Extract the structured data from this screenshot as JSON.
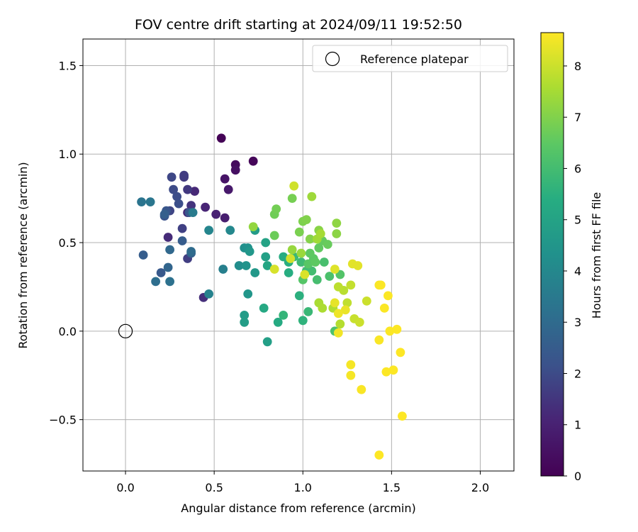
{
  "chart_data": {
    "type": "scatter",
    "title": "FOV centre drift starting at 2024/09/11 19:52:50",
    "xlabel": "Angular distance from reference (arcmin)",
    "ylabel": "Rotation from reference (arcmin)",
    "xlim": [
      -0.24,
      2.19
    ],
    "ylim": [
      -0.79,
      1.65
    ],
    "xticks": [
      0.0,
      0.5,
      1.0,
      1.5,
      2.0
    ],
    "xtick_labels": [
      "0.0",
      "0.5",
      "1.0",
      "1.5",
      "2.0"
    ],
    "yticks": [
      -0.5,
      0.0,
      0.5,
      1.0,
      1.5
    ],
    "ytick_labels": [
      "−0.5",
      "0.0",
      "0.5",
      "1.0",
      "1.5"
    ],
    "grid": true,
    "legend": {
      "placement": "top-right",
      "entries": [
        {
          "label": "Reference platepar",
          "marker": "open-circle",
          "color": "#000000"
        }
      ]
    },
    "reference_point": {
      "x": 0.0,
      "y": 0.0
    },
    "colorbar": {
      "label": "Hours from first FF file",
      "colormap": "viridis",
      "range": [
        0,
        8.65
      ],
      "ticks": [
        0,
        1,
        2,
        3,
        4,
        5,
        6,
        7,
        8
      ],
      "tick_labels": [
        "0",
        "1",
        "2",
        "3",
        "4",
        "5",
        "6",
        "7",
        "8"
      ]
    },
    "points": [
      {
        "x": 0.54,
        "y": 1.09,
        "c": 0.05
      },
      {
        "x": 0.72,
        "y": 0.96,
        "c": 0.15
      },
      {
        "x": 0.62,
        "y": 0.94,
        "c": 0.3
      },
      {
        "x": 0.62,
        "y": 0.91,
        "c": 0.45
      },
      {
        "x": 0.56,
        "y": 0.86,
        "c": 0.6
      },
      {
        "x": 0.58,
        "y": 0.8,
        "c": 0.75
      },
      {
        "x": 0.56,
        "y": 0.64,
        "c": 0.9
      },
      {
        "x": 0.51,
        "y": 0.66,
        "c": 1.0
      },
      {
        "x": 0.45,
        "y": 0.7,
        "c": 1.1
      },
      {
        "x": 0.39,
        "y": 0.79,
        "c": 1.2
      },
      {
        "x": 0.24,
        "y": 0.53,
        "c": 1.25
      },
      {
        "x": 0.35,
        "y": 0.67,
        "c": 1.3
      },
      {
        "x": 0.44,
        "y": 0.19,
        "c": 1.35
      },
      {
        "x": 0.37,
        "y": 0.71,
        "c": 1.45
      },
      {
        "x": 0.35,
        "y": 0.8,
        "c": 1.55
      },
      {
        "x": 0.33,
        "y": 0.87,
        "c": 1.6
      },
      {
        "x": 0.33,
        "y": 0.88,
        "c": 1.65
      },
      {
        "x": 0.35,
        "y": 0.41,
        "c": 1.7
      },
      {
        "x": 0.32,
        "y": 0.58,
        "c": 1.75
      },
      {
        "x": 0.25,
        "y": 0.68,
        "c": 1.85
      },
      {
        "x": 0.26,
        "y": 0.87,
        "c": 1.9
      },
      {
        "x": 0.27,
        "y": 0.8,
        "c": 2.0
      },
      {
        "x": 0.29,
        "y": 0.76,
        "c": 2.05
      },
      {
        "x": 0.3,
        "y": 0.72,
        "c": 2.1
      },
      {
        "x": 0.22,
        "y": 0.65,
        "c": 2.2
      },
      {
        "x": 0.23,
        "y": 0.68,
        "c": 2.3
      },
      {
        "x": 0.36,
        "y": 0.67,
        "c": 2.35
      },
      {
        "x": 0.2,
        "y": 0.33,
        "c": 2.4
      },
      {
        "x": 0.32,
        "y": 0.51,
        "c": 2.5
      },
      {
        "x": 0.1,
        "y": 0.43,
        "c": 2.55
      },
      {
        "x": 0.22,
        "y": 0.66,
        "c": 2.6
      },
      {
        "x": 0.37,
        "y": 0.44,
        "c": 2.7
      },
      {
        "x": 0.24,
        "y": 0.36,
        "c": 2.8
      },
      {
        "x": 0.25,
        "y": 0.46,
        "c": 2.9
      },
      {
        "x": 0.37,
        "y": 0.45,
        "c": 3.0
      },
      {
        "x": 0.17,
        "y": 0.28,
        "c": 3.1
      },
      {
        "x": 0.25,
        "y": 0.28,
        "c": 3.2
      },
      {
        "x": 0.09,
        "y": 0.73,
        "c": 3.3
      },
      {
        "x": 0.14,
        "y": 0.73,
        "c": 3.4
      },
      {
        "x": 0.38,
        "y": 0.67,
        "c": 3.55
      },
      {
        "x": 0.55,
        "y": 0.35,
        "c": 3.7
      },
      {
        "x": 0.47,
        "y": 0.21,
        "c": 3.8
      },
      {
        "x": 0.47,
        "y": 0.57,
        "c": 3.9
      },
      {
        "x": 0.59,
        "y": 0.57,
        "c": 4.0
      },
      {
        "x": 0.64,
        "y": 0.37,
        "c": 4.2
      },
      {
        "x": 0.67,
        "y": 0.47,
        "c": 4.3
      },
      {
        "x": 0.69,
        "y": 0.47,
        "c": 4.35
      },
      {
        "x": 0.68,
        "y": 0.37,
        "c": 4.4
      },
      {
        "x": 0.69,
        "y": 0.21,
        "c": 4.5
      },
      {
        "x": 0.7,
        "y": 0.45,
        "c": 4.55
      },
      {
        "x": 0.73,
        "y": 0.33,
        "c": 4.6
      },
      {
        "x": 0.73,
        "y": 0.57,
        "c": 4.7
      },
      {
        "x": 0.67,
        "y": 0.09,
        "c": 4.75
      },
      {
        "x": 0.67,
        "y": 0.05,
        "c": 4.8
      },
      {
        "x": 0.8,
        "y": -0.06,
        "c": 4.85
      },
      {
        "x": 0.79,
        "y": 0.42,
        "c": 4.9
      },
      {
        "x": 0.79,
        "y": 0.5,
        "c": 5.0
      },
      {
        "x": 0.8,
        "y": 0.37,
        "c": 5.1
      },
      {
        "x": 0.78,
        "y": 0.13,
        "c": 5.2
      },
      {
        "x": 0.86,
        "y": 0.05,
        "c": 5.3
      },
      {
        "x": 0.89,
        "y": 0.42,
        "c": 5.35
      },
      {
        "x": 0.92,
        "y": 0.33,
        "c": 5.4
      },
      {
        "x": 0.92,
        "y": 0.39,
        "c": 5.45
      },
      {
        "x": 0.98,
        "y": 0.2,
        "c": 5.5
      },
      {
        "x": 1.0,
        "y": 0.06,
        "c": 5.6
      },
      {
        "x": 0.89,
        "y": 0.09,
        "c": 5.7
      },
      {
        "x": 1.03,
        "y": 0.11,
        "c": 5.8
      },
      {
        "x": 0.95,
        "y": 0.42,
        "c": 5.85
      },
      {
        "x": 0.99,
        "y": 0.39,
        "c": 5.9
      },
      {
        "x": 1.02,
        "y": 0.34,
        "c": 5.95
      },
      {
        "x": 1.05,
        "y": 0.34,
        "c": 6.0
      },
      {
        "x": 1.08,
        "y": 0.29,
        "c": 6.05
      },
      {
        "x": 1.12,
        "y": 0.39,
        "c": 6.1
      },
      {
        "x": 1.15,
        "y": 0.31,
        "c": 6.15
      },
      {
        "x": 1.18,
        "y": 0.0,
        "c": 6.2
      },
      {
        "x": 1.21,
        "y": 0.32,
        "c": 6.3
      },
      {
        "x": 1.0,
        "y": 0.29,
        "c": 6.35
      },
      {
        "x": 1.03,
        "y": 0.38,
        "c": 6.4
      },
      {
        "x": 1.06,
        "y": 0.41,
        "c": 6.45
      },
      {
        "x": 1.07,
        "y": 0.39,
        "c": 6.5
      },
      {
        "x": 1.04,
        "y": 0.44,
        "c": 6.5
      },
      {
        "x": 1.09,
        "y": 0.47,
        "c": 6.55
      },
      {
        "x": 1.11,
        "y": 0.51,
        "c": 6.6
      },
      {
        "x": 1.14,
        "y": 0.49,
        "c": 6.65
      },
      {
        "x": 0.84,
        "y": 0.54,
        "c": 6.7
      },
      {
        "x": 0.84,
        "y": 0.66,
        "c": 6.75
      },
      {
        "x": 0.85,
        "y": 0.69,
        "c": 6.8
      },
      {
        "x": 0.94,
        "y": 0.75,
        "c": 6.85
      },
      {
        "x": 0.98,
        "y": 0.56,
        "c": 6.9
      },
      {
        "x": 1.0,
        "y": 0.62,
        "c": 6.95
      },
      {
        "x": 1.02,
        "y": 0.63,
        "c": 7.0
      },
      {
        "x": 1.04,
        "y": 0.52,
        "c": 7.05
      },
      {
        "x": 1.09,
        "y": 0.57,
        "c": 7.1
      },
      {
        "x": 1.19,
        "y": 0.55,
        "c": 7.15
      },
      {
        "x": 1.19,
        "y": 0.61,
        "c": 7.2
      },
      {
        "x": 0.72,
        "y": 0.59,
        "c": 7.25
      },
      {
        "x": 0.94,
        "y": 0.46,
        "c": 7.3
      },
      {
        "x": 0.99,
        "y": 0.44,
        "c": 7.35
      },
      {
        "x": 1.05,
        "y": 0.76,
        "c": 7.4
      },
      {
        "x": 1.08,
        "y": 0.52,
        "c": 7.45
      },
      {
        "x": 1.1,
        "y": 0.55,
        "c": 7.5
      },
      {
        "x": 1.09,
        "y": 0.16,
        "c": 7.55
      },
      {
        "x": 1.11,
        "y": 0.13,
        "c": 7.6
      },
      {
        "x": 1.17,
        "y": 0.13,
        "c": 7.65
      },
      {
        "x": 1.21,
        "y": 0.04,
        "c": 7.7
      },
      {
        "x": 1.23,
        "y": 0.23,
        "c": 7.75
      },
      {
        "x": 1.2,
        "y": 0.25,
        "c": 7.8
      },
      {
        "x": 1.25,
        "y": 0.16,
        "c": 7.85
      },
      {
        "x": 1.27,
        "y": 0.26,
        "c": 7.9
      },
      {
        "x": 1.29,
        "y": 0.07,
        "c": 7.95
      },
      {
        "x": 1.32,
        "y": 0.05,
        "c": 8.0
      },
      {
        "x": 1.36,
        "y": 0.17,
        "c": 8.0
      },
      {
        "x": 0.95,
        "y": 0.82,
        "c": 8.05
      },
      {
        "x": 0.93,
        "y": 0.41,
        "c": 8.1
      },
      {
        "x": 0.84,
        "y": 0.35,
        "c": 8.15
      },
      {
        "x": 1.01,
        "y": 0.32,
        "c": 8.2
      },
      {
        "x": 1.18,
        "y": 0.35,
        "c": 8.25
      },
      {
        "x": 1.28,
        "y": 0.38,
        "c": 8.3
      },
      {
        "x": 1.31,
        "y": 0.37,
        "c": 8.3
      },
      {
        "x": 1.18,
        "y": 0.16,
        "c": 8.35
      },
      {
        "x": 1.24,
        "y": 0.12,
        "c": 8.4
      },
      {
        "x": 1.2,
        "y": 0.1,
        "c": 8.45
      },
      {
        "x": 1.2,
        "y": -0.01,
        "c": 8.5
      },
      {
        "x": 1.27,
        "y": -0.19,
        "c": 8.55
      },
      {
        "x": 1.27,
        "y": -0.25,
        "c": 8.55
      },
      {
        "x": 1.33,
        "y": -0.33,
        "c": 8.6
      },
      {
        "x": 1.43,
        "y": -0.05,
        "c": 8.6
      },
      {
        "x": 1.43,
        "y": 0.26,
        "c": 8.6
      },
      {
        "x": 1.44,
        "y": 0.26,
        "c": 8.62
      },
      {
        "x": 1.46,
        "y": 0.13,
        "c": 8.62
      },
      {
        "x": 1.48,
        "y": 0.2,
        "c": 8.63
      },
      {
        "x": 1.49,
        "y": 0.0,
        "c": 8.63
      },
      {
        "x": 1.47,
        "y": -0.23,
        "c": 8.64
      },
      {
        "x": 1.51,
        "y": -0.22,
        "c": 8.64
      },
      {
        "x": 1.53,
        "y": 0.01,
        "c": 8.64
      },
      {
        "x": 1.55,
        "y": -0.12,
        "c": 8.65
      },
      {
        "x": 1.56,
        "y": -0.48,
        "c": 8.65
      },
      {
        "x": 1.43,
        "y": -0.7,
        "c": 8.65
      }
    ]
  }
}
